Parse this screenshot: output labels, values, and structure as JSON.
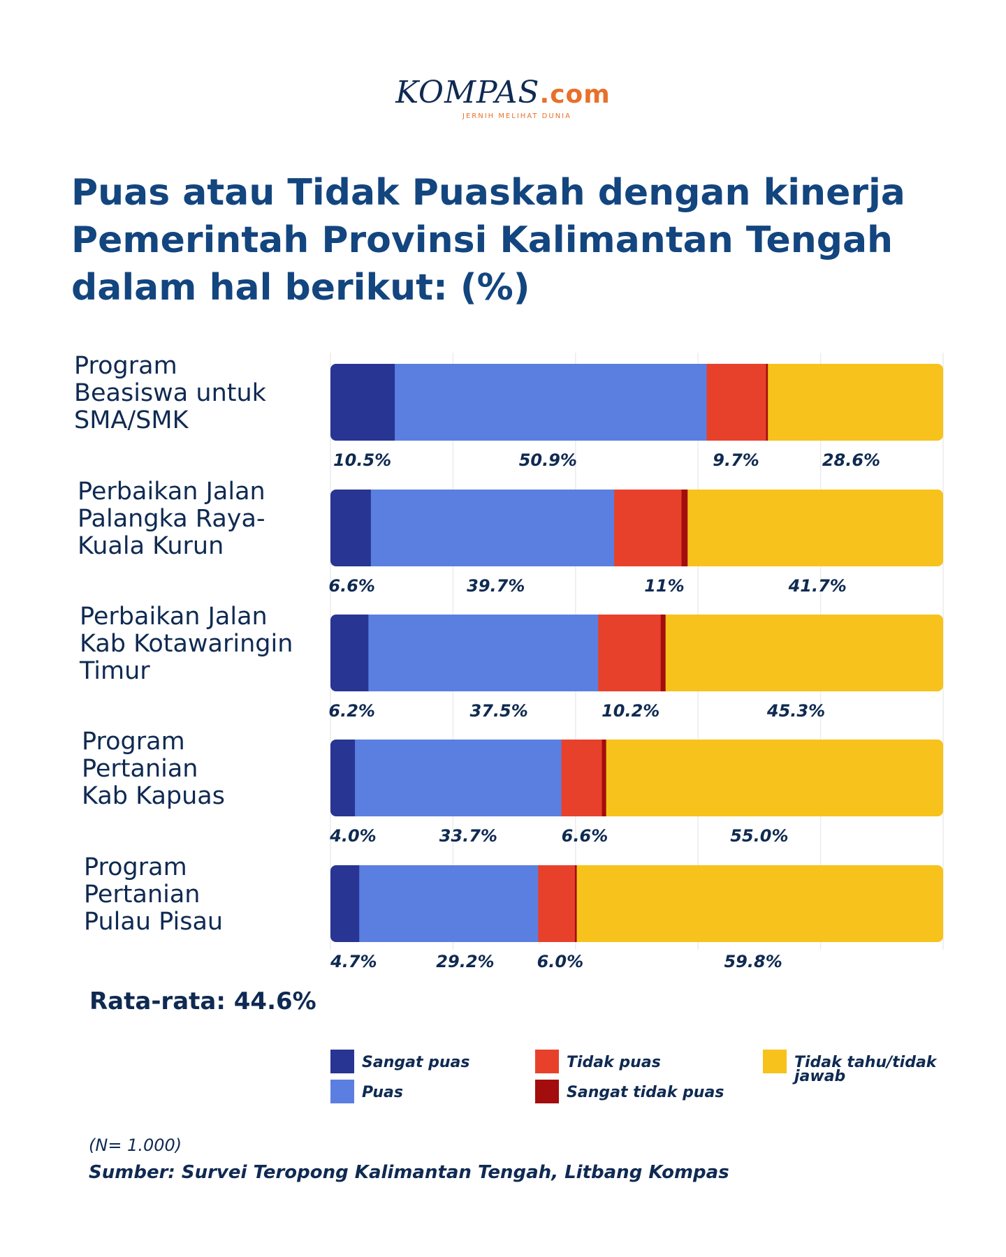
{
  "logo": {
    "main": "KOMPAS",
    "domain": ".com",
    "tagline": "JERNIH MELIHAT DUNIA"
  },
  "title": "Puas atau Tidak Puaskah dengan kinerja Pemerintah Provinsi Kalimantan Tengah dalam hal berikut: (%)",
  "colors": {
    "sangat_puas": "#283593",
    "puas": "#5b7fe0",
    "tidak_puas": "#e8412b",
    "sangat_tidak_puas": "#a30d0d",
    "tidak_tahu": "#f7c21b",
    "text": "#0f2a52",
    "title": "#13457f"
  },
  "chart_data": {
    "type": "bar",
    "orientation": "horizontal",
    "stacked": true,
    "xlim": [
      0,
      100
    ],
    "grid": true,
    "legend_position": "bottom",
    "categories": [
      [
        "Program",
        "Beasiswa untuk",
        "SMA/SMK"
      ],
      [
        "Perbaikan Jalan",
        "Palangka Raya-",
        "Kuala Kurun"
      ],
      [
        "Perbaikan Jalan",
        "Kab Kotawaringin",
        "Timur"
      ],
      [
        "Program",
        "Pertanian",
        "Kab Kapuas"
      ],
      [
        "Program",
        "Pertanian",
        "Pulau Pisau"
      ]
    ],
    "series": [
      {
        "name": "Sangat puas",
        "color_key": "sangat_puas",
        "values": [
          10.5,
          6.6,
          6.2,
          4.0,
          4.7
        ]
      },
      {
        "name": "Puas",
        "color_key": "puas",
        "values": [
          50.9,
          39.7,
          37.5,
          33.7,
          29.2
        ]
      },
      {
        "name": "Tidak puas",
        "color_key": "tidak_puas",
        "values": [
          9.7,
          11.0,
          10.2,
          6.6,
          6.0
        ]
      },
      {
        "name": "Sangat tidak puas",
        "color_key": "sangat_tidak_puas",
        "values": [
          0.3,
          1.0,
          0.8,
          0.7,
          0.3
        ]
      },
      {
        "name": "Tidak tahu/tidak jawab",
        "color_key": "tidak_tahu",
        "values": [
          28.6,
          41.7,
          45.3,
          55.0,
          59.8
        ]
      }
    ],
    "data_labels": [
      [
        "10.5%",
        "50.9%",
        "9.7%",
        "28.6%"
      ],
      [
        "6.6%",
        "39.7%",
        "11%",
        "41.7%"
      ],
      [
        "6.2%",
        "37.5%",
        "10.2%",
        "45.3%"
      ],
      [
        "4.0%",
        "33.7%",
        "6.6%",
        "55.0%"
      ],
      [
        "4.7%",
        "29.2%",
        "6.0%",
        "59.8%"
      ]
    ],
    "data_label_positions": [
      [
        5.2,
        35.5,
        66.2,
        85.0
      ],
      [
        3.5,
        27.0,
        54.5,
        79.5
      ],
      [
        3.5,
        27.5,
        49.0,
        76.0
      ],
      [
        3.7,
        22.5,
        41.5,
        70.0
      ],
      [
        3.8,
        22.0,
        37.5,
        69.0
      ]
    ],
    "legend_columns": [
      [
        "Sangat puas",
        "Puas"
      ],
      [
        "Tidak puas",
        "Sangat tidak puas"
      ],
      [
        "Tidak tahu/tidak jawab"
      ]
    ],
    "average_label": "Rata-rata: 44.6%"
  },
  "footer": {
    "note": "(N= 1.000)",
    "source": "Sumber: Survei Teropong Kalimantan Tengah, Litbang Kompas"
  }
}
